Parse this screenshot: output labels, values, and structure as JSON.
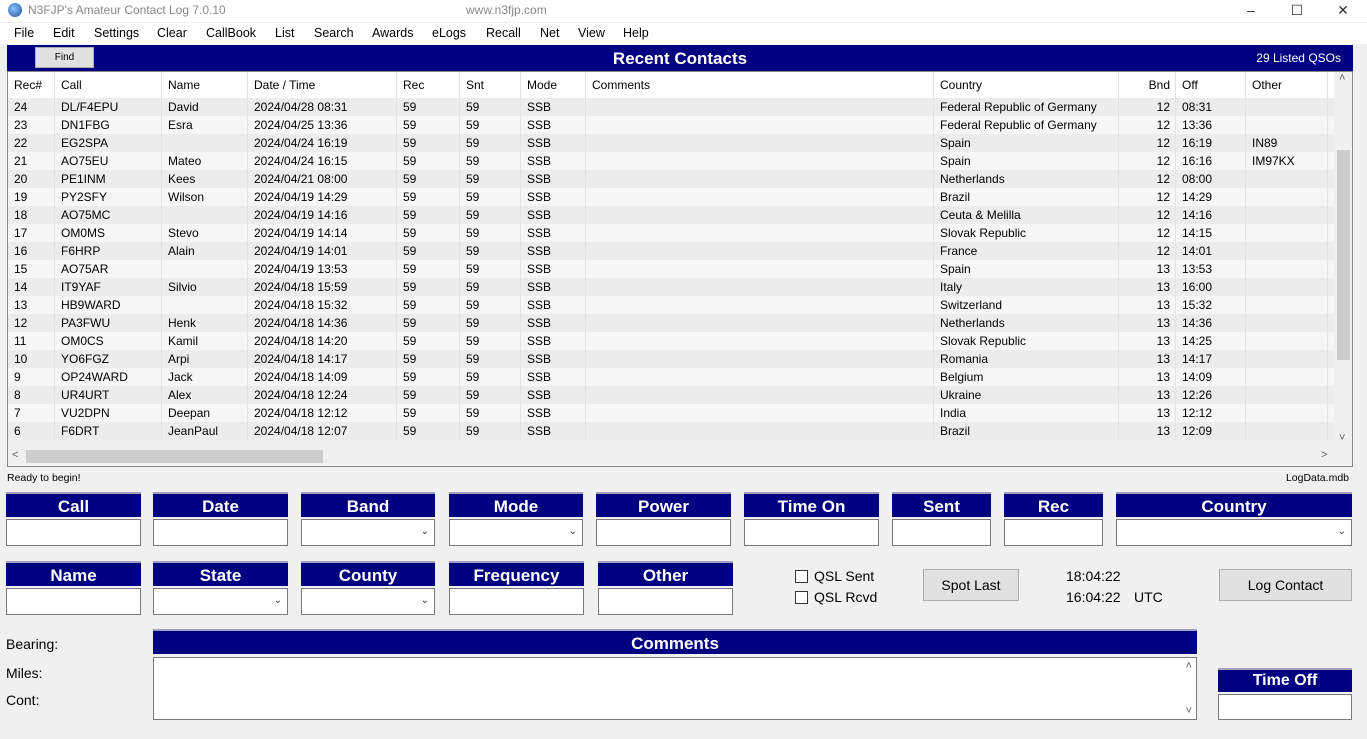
{
  "window": {
    "title": "N3FJP's Amateur Contact Log 7.0.10",
    "url": "www.n3fjp.com"
  },
  "menu": [
    "File",
    "Edit",
    "Settings",
    "Clear",
    "CallBook",
    "List",
    "Search",
    "Awards",
    "eLogs",
    "Recall",
    "Net",
    "View",
    "Help"
  ],
  "grid": {
    "find_label": "Find",
    "title": "Recent Contacts",
    "count": "29 Listed QSOs",
    "columns": [
      "Rec#",
      "Call",
      "Name",
      "Date  /  Time",
      "Rec",
      "Snt",
      "Mode",
      "Comments",
      "Country",
      "Bnd",
      "Off",
      "Other"
    ],
    "rows": [
      [
        "24",
        "DL/F4EPU",
        "David",
        "2024/04/28  08:31",
        "59",
        "59",
        "SSB",
        "",
        "Federal Republic of Germany",
        "12",
        "08:31",
        ""
      ],
      [
        "23",
        "DN1FBG",
        "Esra",
        "2024/04/25  13:36",
        "59",
        "59",
        "SSB",
        "",
        "Federal Republic of Germany",
        "12",
        "13:36",
        ""
      ],
      [
        "22",
        "EG2SPA",
        "",
        "2024/04/24  16:19",
        "59",
        "59",
        "SSB",
        "",
        "Spain",
        "12",
        "16:19",
        "IN89"
      ],
      [
        "21",
        "AO75EU",
        "Mateo",
        "2024/04/24  16:15",
        "59",
        "59",
        "SSB",
        "",
        "Spain",
        "12",
        "16:16",
        "IM97KX"
      ],
      [
        "20",
        "PE1INM",
        "Kees",
        "2024/04/21  08:00",
        "59",
        "59",
        "SSB",
        "",
        "Netherlands",
        "12",
        "08:00",
        ""
      ],
      [
        "19",
        "PY2SFY",
        "Wilson",
        "2024/04/19  14:29",
        "59",
        "59",
        "SSB",
        "",
        "Brazil",
        "12",
        "14:29",
        ""
      ],
      [
        "18",
        "AO75MC",
        "",
        "2024/04/19  14:16",
        "59",
        "59",
        "SSB",
        "",
        "Ceuta & Melilla",
        "12",
        "14:16",
        ""
      ],
      [
        "17",
        "OM0MS",
        "Stevo",
        "2024/04/19  14:14",
        "59",
        "59",
        "SSB",
        "",
        "Slovak Republic",
        "12",
        "14:15",
        ""
      ],
      [
        "16",
        "F6HRP",
        "Alain",
        "2024/04/19  14:01",
        "59",
        "59",
        "SSB",
        "",
        "France",
        "12",
        "14:01",
        ""
      ],
      [
        "15",
        "AO75AR",
        "",
        "2024/04/19  13:53",
        "59",
        "59",
        "SSB",
        "",
        "Spain",
        "13",
        "13:53",
        ""
      ],
      [
        "14",
        "IT9YAF",
        "Silvio",
        "2024/04/18  15:59",
        "59",
        "59",
        "SSB",
        "",
        "Italy",
        "13",
        "16:00",
        ""
      ],
      [
        "13",
        "HB9WARD",
        "",
        "2024/04/18  15:32",
        "59",
        "59",
        "SSB",
        "",
        "Switzerland",
        "13",
        "15:32",
        ""
      ],
      [
        "12",
        "PA3FWU",
        "Henk",
        "2024/04/18  14:36",
        "59",
        "59",
        "SSB",
        "",
        "Netherlands",
        "13",
        "14:36",
        ""
      ],
      [
        "11",
        "OM0CS",
        "Kamil",
        "2024/04/18  14:20",
        "59",
        "59",
        "SSB",
        "",
        "Slovak Republic",
        "13",
        "14:25",
        ""
      ],
      [
        "10",
        "YO6FGZ",
        "Arpi",
        "2024/04/18  14:17",
        "59",
        "59",
        "SSB",
        "",
        "Romania",
        "13",
        "14:17",
        ""
      ],
      [
        "9",
        "OP24WARD",
        "Jack",
        "2024/04/18  14:09",
        "59",
        "59",
        "SSB",
        "",
        "Belgium",
        "13",
        "14:09",
        ""
      ],
      [
        "8",
        "UR4URT",
        "Alex",
        "2024/04/18  12:24",
        "59",
        "59",
        "SSB",
        "",
        "Ukraine",
        "13",
        "12:26",
        ""
      ],
      [
        "7",
        "VU2DPN",
        "Deepan",
        "2024/04/18  12:12",
        "59",
        "59",
        "SSB",
        "",
        "India",
        "13",
        "12:12",
        ""
      ],
      [
        "6",
        "F6DRT",
        "JeanPaul",
        "2024/04/18  12:07",
        "59",
        "59",
        "SSB",
        "",
        "Brazil",
        "13",
        "12:09",
        ""
      ]
    ]
  },
  "status": {
    "left": "Ready to begin!",
    "right": "LogData.mdb"
  },
  "form": {
    "row1": [
      "Call",
      "Date",
      "Band",
      "Mode",
      "Power",
      "Time On",
      "Sent",
      "Rec",
      "Country"
    ],
    "row2": [
      "Name",
      "State",
      "County",
      "Frequency",
      "Other"
    ],
    "qsl_sent": "QSL Sent",
    "qsl_rcvd": "QSL Rcvd",
    "spot_last": "Spot Last",
    "local_time": "18:04:22",
    "utc_time": "16:04:22",
    "utc_label": "UTC",
    "log_contact": "Log Contact",
    "bearing": "Bearing:",
    "miles": "Miles:",
    "cont": "Cont:",
    "comments": "Comments",
    "time_off": "Time Off"
  },
  "colors": {
    "header_bg": "#000080",
    "header_text": "#ffffff"
  }
}
